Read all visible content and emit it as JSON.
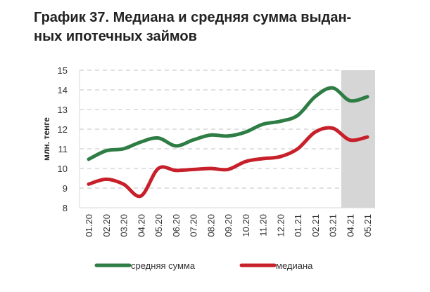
{
  "chart_data": {
    "type": "line",
    "title": "График 37. Медиана и средняя сумма выданных ипотечных займов",
    "title_lines": [
      "График 37. Медиана и средняя сумма выдан-",
      "ных ипотечных займов"
    ],
    "xlabel": "",
    "ylabel": "млн. тенге",
    "ylim": [
      8,
      15
    ],
    "yticks": [
      8,
      9,
      10,
      11,
      12,
      13,
      14,
      15
    ],
    "grid": true,
    "categories": [
      "01.20",
      "02.20",
      "03.20",
      "04.20",
      "05.20",
      "06.20",
      "07.20",
      "08.20",
      "09.20",
      "10.20",
      "11.20",
      "12.20",
      "01.21",
      "02.21",
      "03.21",
      "04.21",
      "05.21"
    ],
    "shaded_categories": [
      "04.21",
      "05.21"
    ],
    "legend_position": "bottom",
    "series": [
      {
        "name": "средняя сумма",
        "color": "#2e7d44",
        "values": [
          10.47,
          10.9,
          11.0,
          11.35,
          11.55,
          11.15,
          11.45,
          11.7,
          11.65,
          11.85,
          12.25,
          12.4,
          12.7,
          13.65,
          14.1,
          13.45,
          13.65
        ]
      },
      {
        "name": "медиана",
        "color": "#c8202a",
        "values": [
          9.2,
          9.45,
          9.2,
          8.6,
          10.0,
          9.9,
          9.95,
          10.0,
          9.95,
          10.35,
          10.5,
          10.6,
          11.0,
          11.85,
          12.05,
          11.45,
          11.6
        ]
      }
    ]
  }
}
